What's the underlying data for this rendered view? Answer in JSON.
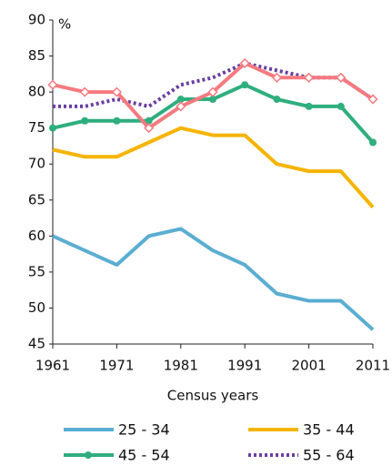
{
  "chart_data": {
    "type": "line",
    "x_label": "Census years",
    "y_label": "%",
    "x": [
      1961,
      1966,
      1971,
      1976,
      1981,
      1986,
      1991,
      1996,
      2001,
      2006,
      2011
    ],
    "xlim": [
      1961,
      2011
    ],
    "xticks": [
      1961,
      1971,
      1981,
      1991,
      2001,
      2011
    ],
    "ylim": [
      45,
      90
    ],
    "yticks": [
      45,
      50,
      55,
      60,
      65,
      70,
      75,
      80,
      85,
      90
    ],
    "series": [
      {
        "name": "25 - 34",
        "color": "#5aaed1",
        "values": [
          60,
          58,
          56,
          60,
          61,
          58,
          56,
          52,
          51,
          51,
          47
        ]
      },
      {
        "name": "35 - 44",
        "color": "#f5b400",
        "values": [
          72,
          71,
          71,
          73,
          75,
          74,
          74,
          70,
          69,
          69,
          64
        ]
      },
      {
        "name": "45 - 54",
        "color": "#2fae7e",
        "marker": "circle",
        "values": [
          75,
          76,
          76,
          76,
          79,
          79,
          81,
          79,
          78,
          78,
          73
        ]
      },
      {
        "name": "55 - 64",
        "color": "#6a3fa0",
        "dash": true,
        "values": [
          78,
          78,
          79,
          78,
          81,
          82,
          84,
          83,
          82,
          82,
          79
        ]
      },
      {
        "color": "#f47a80",
        "marker": "diamond",
        "values": [
          81,
          80,
          80,
          75,
          78,
          80,
          84,
          82,
          82,
          82,
          79
        ]
      }
    ]
  }
}
